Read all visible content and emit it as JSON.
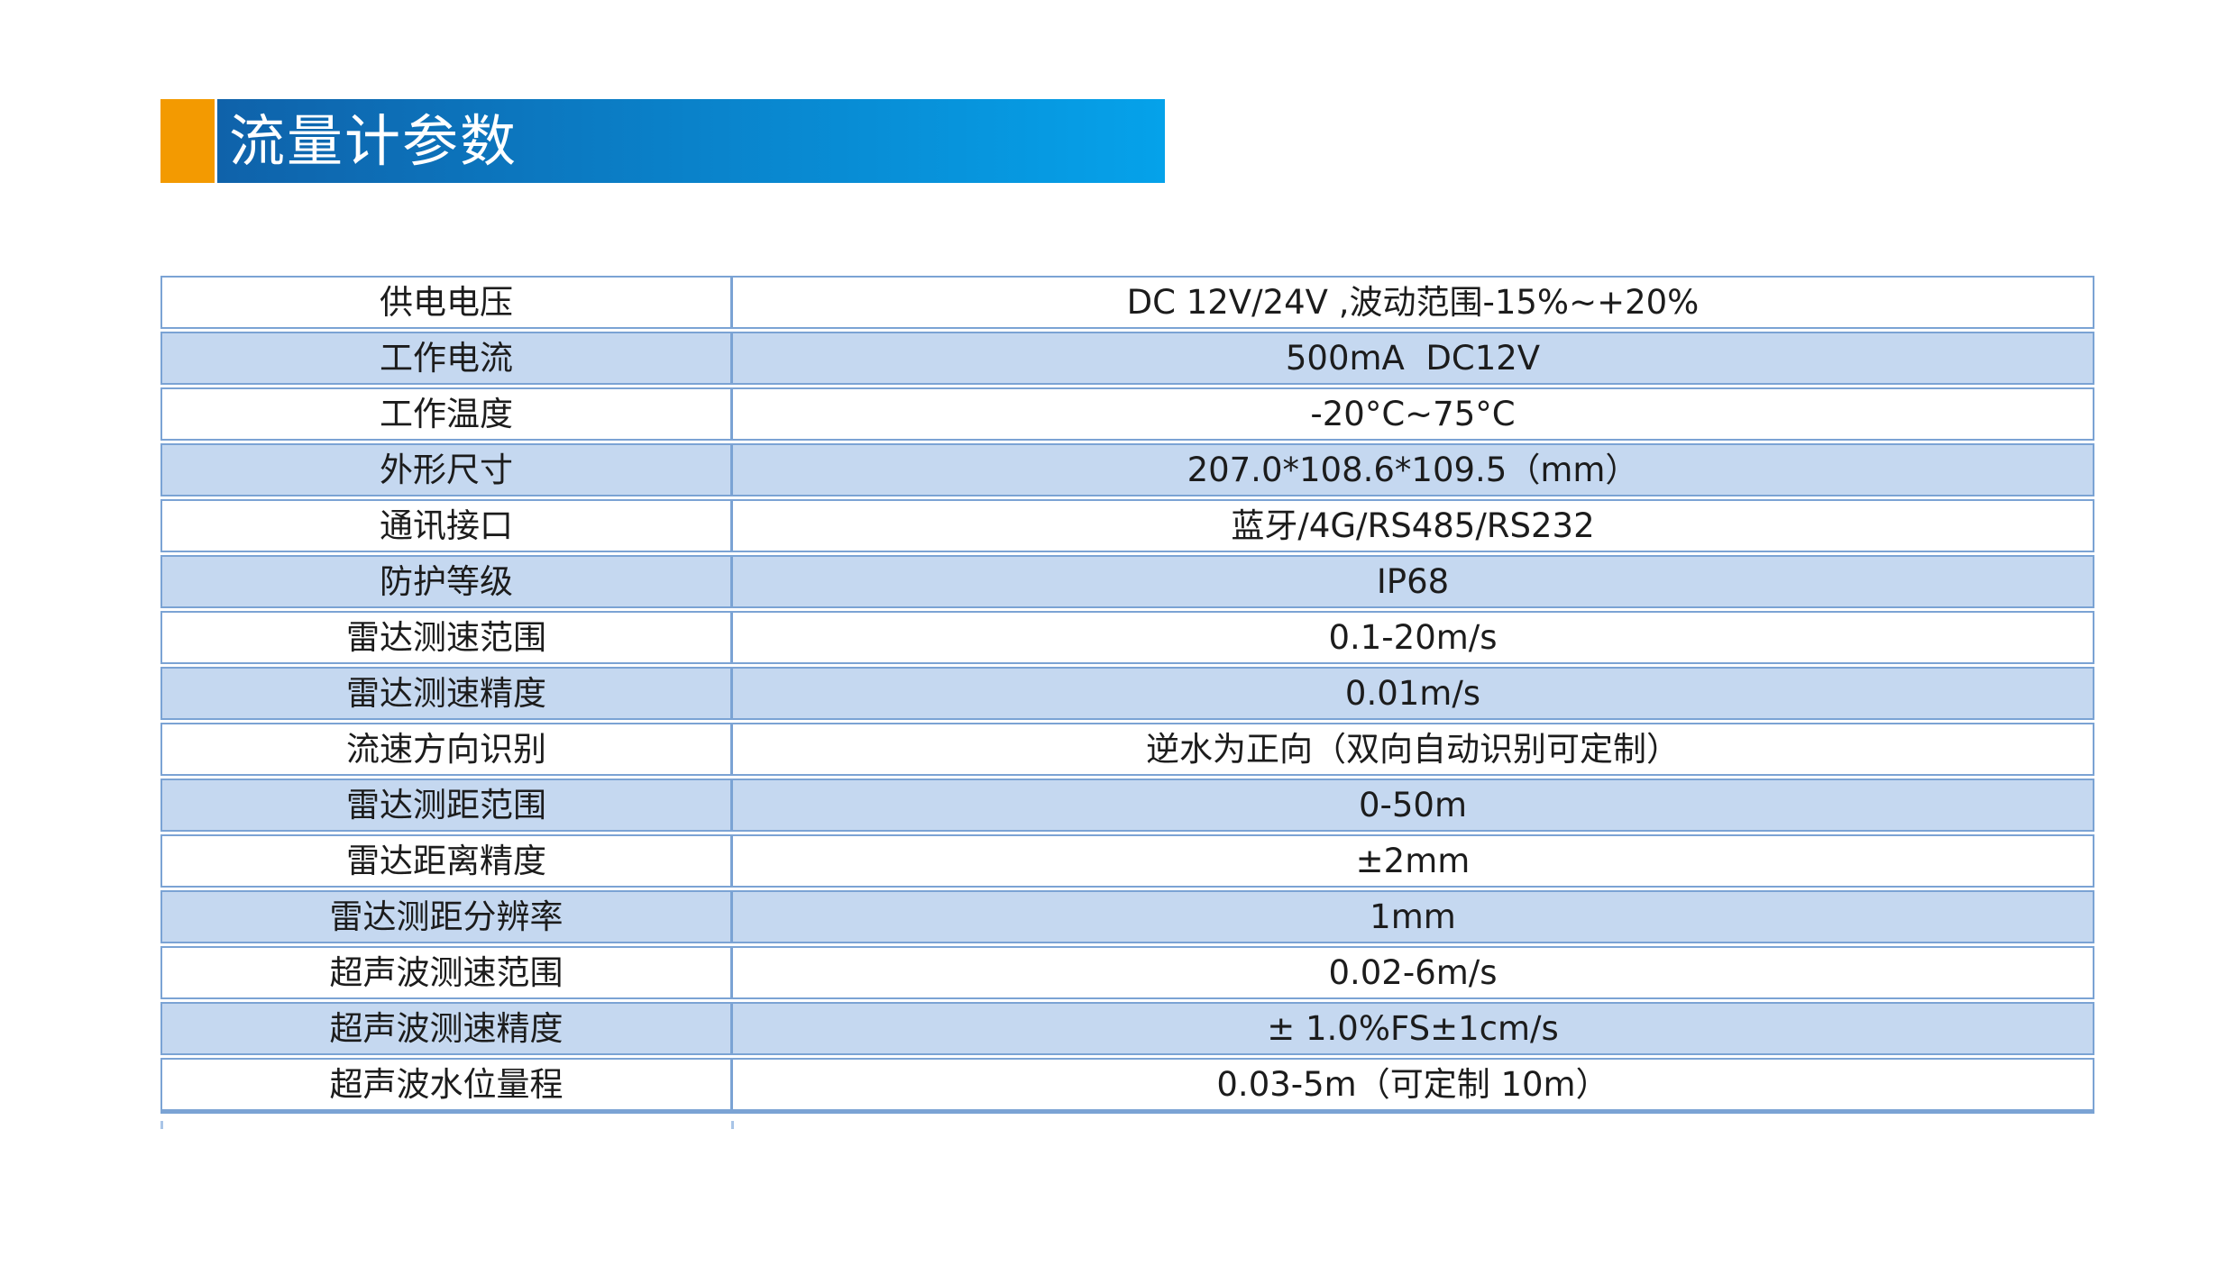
{
  "page": {
    "background": "#ffffff"
  },
  "banner": {
    "title": "流量计参数",
    "accent_color": "#f39a01",
    "gradient_from": "#0f62aa",
    "gradient_to": "#05a2ea",
    "text_color": "#ffffff"
  },
  "table": {
    "stripe_color": "#c5d8f0",
    "border_color": "#7ba3d4",
    "text_color": "#1c1c1c",
    "columns": [
      "parameter",
      "value"
    ],
    "rows": [
      {
        "label": "供电电压",
        "value": "DC 12V/24V ,波动范围-15%~+20%"
      },
      {
        "label": "工作电流",
        "value": "500mA  DC12V"
      },
      {
        "label": "工作温度",
        "value": "-20°C~75°C"
      },
      {
        "label": "外形尺寸",
        "value": "207.0*108.6*109.5（mm）"
      },
      {
        "label": "通讯接口",
        "value": "蓝牙/4G/RS485/RS232"
      },
      {
        "label": "防护等级",
        "value": "IP68"
      },
      {
        "label": "雷达测速范围",
        "value": "0.1-20m/s"
      },
      {
        "label": "雷达测速精度",
        "value": "0.01m/s"
      },
      {
        "label": "流速方向识别",
        "value": "逆水为正向（双向自动识别可定制）"
      },
      {
        "label": "雷达测距范围",
        "value": "0-50m"
      },
      {
        "label": "雷达距离精度",
        "value": "±2mm"
      },
      {
        "label": "雷达测距分辨率",
        "value": "1mm"
      },
      {
        "label": "超声波测速范围",
        "value": "0.02-6m/s"
      },
      {
        "label": "超声波测速精度",
        "value": "± 1.0%FS±1cm/s"
      },
      {
        "label": "超声波水位量程",
        "value": "0.03-5m（可定制 10m）"
      }
    ]
  }
}
